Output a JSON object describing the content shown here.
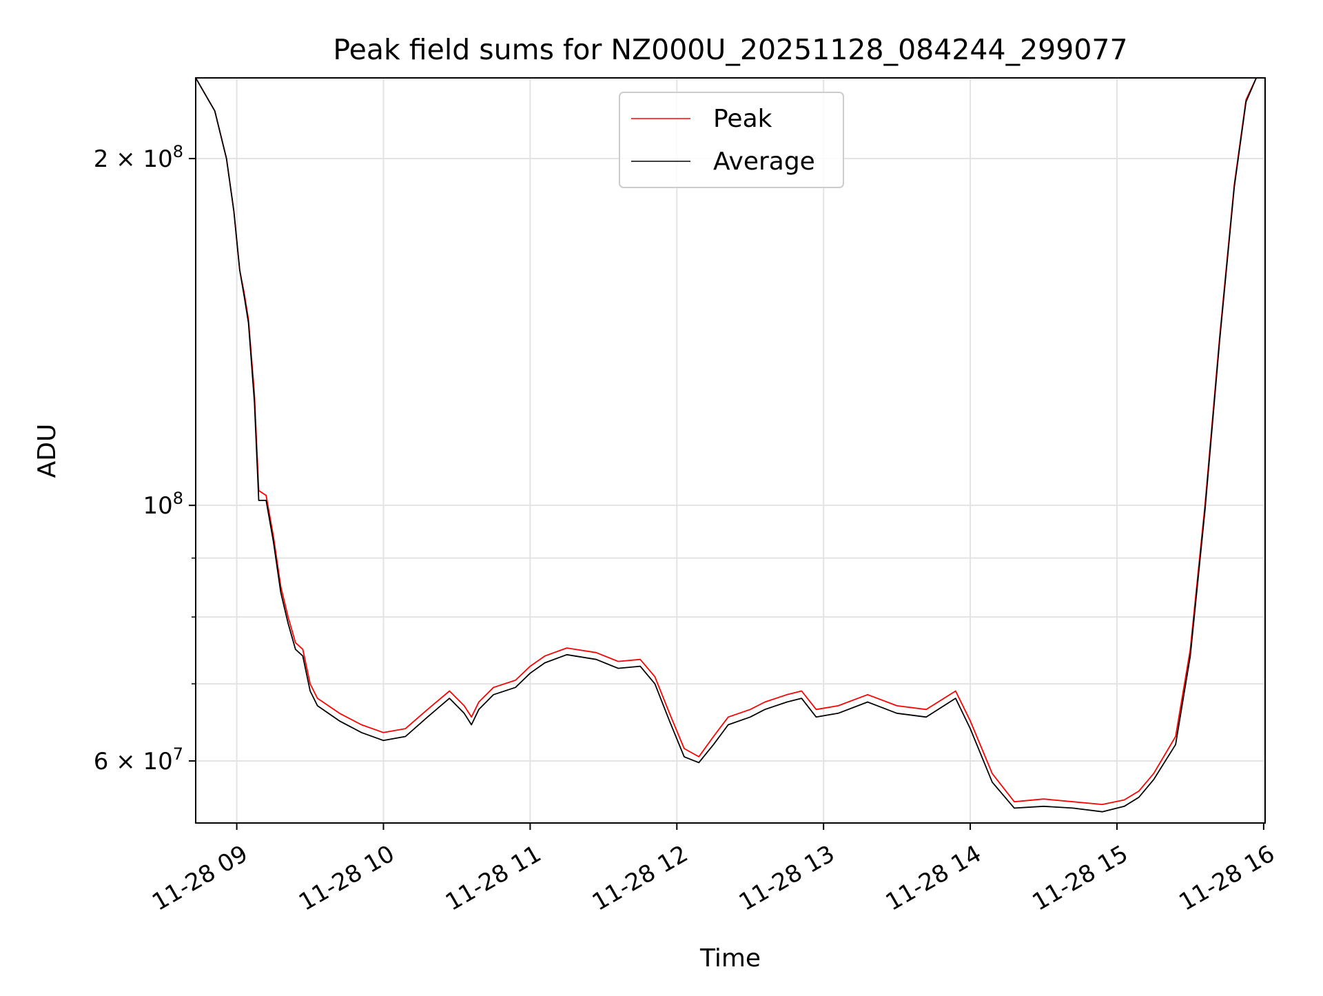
{
  "chart_data": {
    "type": "line",
    "title": "Peak field sums for NZ000U_20251128_084244_299077",
    "xlabel": "Time",
    "ylabel": "ADU",
    "x_unit": "hours (decimal, 2025-11-28)",
    "xlim": [
      8.72,
      16.01
    ],
    "ylim": [
      53000000,
      235000000
    ],
    "y_scale": "log",
    "grid": true,
    "legend_position": "top-center",
    "x_ticks": [
      {
        "value": 9,
        "label": "11-28 09"
      },
      {
        "value": 10,
        "label": "11-28 10"
      },
      {
        "value": 11,
        "label": "11-28 11"
      },
      {
        "value": 12,
        "label": "11-28 12"
      },
      {
        "value": 13,
        "label": "11-28 13"
      },
      {
        "value": 14,
        "label": "11-28 14"
      },
      {
        "value": 15,
        "label": "11-28 15"
      },
      {
        "value": 16,
        "label": "11-28 16"
      }
    ],
    "y_ticks": [
      {
        "value": 200000000,
        "mantissa": "2",
        "exponent": "8"
      },
      {
        "value": 100000000,
        "mantissa": "",
        "exponent": "8"
      },
      {
        "value": 60000000,
        "mantissa": "6",
        "exponent": "7"
      }
    ],
    "y_minor_ticks": [
      70000000,
      80000000,
      90000000
    ],
    "series": [
      {
        "name": "Peak",
        "color": "#ff0000",
        "points": [
          [
            8.72,
            235000000
          ],
          [
            8.85,
            220000000
          ],
          [
            8.93,
            200000000
          ],
          [
            8.98,
            180000000
          ],
          [
            9.02,
            160000000
          ],
          [
            9.05,
            153000000
          ],
          [
            9.08,
            145000000
          ],
          [
            9.12,
            125000000
          ],
          [
            9.15,
            103000000
          ],
          [
            9.2,
            102000000
          ],
          [
            9.25,
            94000000
          ],
          [
            9.3,
            85000000
          ],
          [
            9.35,
            80000000
          ],
          [
            9.4,
            76000000
          ],
          [
            9.45,
            75000000
          ],
          [
            9.5,
            70000000
          ],
          [
            9.55,
            68000000
          ],
          [
            9.7,
            66000000
          ],
          [
            9.85,
            64500000
          ],
          [
            10.0,
            63500000
          ],
          [
            10.15,
            64000000
          ],
          [
            10.3,
            66500000
          ],
          [
            10.45,
            69000000
          ],
          [
            10.55,
            67000000
          ],
          [
            10.6,
            65500000
          ],
          [
            10.65,
            67500000
          ],
          [
            10.75,
            69500000
          ],
          [
            10.9,
            70500000
          ],
          [
            11.0,
            72500000
          ],
          [
            11.1,
            74000000
          ],
          [
            11.25,
            75200000
          ],
          [
            11.45,
            74500000
          ],
          [
            11.6,
            73200000
          ],
          [
            11.75,
            73500000
          ],
          [
            11.85,
            71000000
          ],
          [
            11.95,
            66000000
          ],
          [
            12.05,
            61500000
          ],
          [
            12.15,
            60500000
          ],
          [
            12.25,
            63000000
          ],
          [
            12.35,
            65500000
          ],
          [
            12.5,
            66500000
          ],
          [
            12.6,
            67500000
          ],
          [
            12.75,
            68500000
          ],
          [
            12.85,
            69000000
          ],
          [
            12.95,
            66500000
          ],
          [
            13.1,
            67000000
          ],
          [
            13.3,
            68500000
          ],
          [
            13.5,
            67000000
          ],
          [
            13.7,
            66500000
          ],
          [
            13.9,
            69000000
          ],
          [
            14.0,
            65000000
          ],
          [
            14.15,
            58500000
          ],
          [
            14.3,
            55300000
          ],
          [
            14.5,
            55600000
          ],
          [
            14.7,
            55300000
          ],
          [
            14.9,
            55000000
          ],
          [
            15.05,
            55500000
          ],
          [
            15.15,
            56500000
          ],
          [
            15.25,
            58500000
          ],
          [
            15.4,
            63000000
          ],
          [
            15.5,
            75000000
          ],
          [
            15.6,
            100000000
          ],
          [
            15.7,
            140000000
          ],
          [
            15.8,
            190000000
          ],
          [
            15.88,
            225000000
          ],
          [
            15.95,
            235000000
          ],
          [
            16.01,
            235000000
          ]
        ]
      },
      {
        "name": "Average",
        "color": "#000000",
        "points": [
          [
            8.72,
            235000000
          ],
          [
            8.85,
            220000000
          ],
          [
            8.93,
            200000000
          ],
          [
            8.98,
            180000000
          ],
          [
            9.02,
            160000000
          ],
          [
            9.05,
            152000000
          ],
          [
            9.08,
            144000000
          ],
          [
            9.12,
            123000000
          ],
          [
            9.15,
            101000000
          ],
          [
            9.2,
            101000000
          ],
          [
            9.25,
            93000000
          ],
          [
            9.3,
            84000000
          ],
          [
            9.35,
            79000000
          ],
          [
            9.4,
            75000000
          ],
          [
            9.45,
            74000000
          ],
          [
            9.5,
            69000000
          ],
          [
            9.55,
            67000000
          ],
          [
            9.7,
            65000000
          ],
          [
            9.85,
            63500000
          ],
          [
            10.0,
            62500000
          ],
          [
            10.15,
            63000000
          ],
          [
            10.3,
            65500000
          ],
          [
            10.45,
            68000000
          ],
          [
            10.55,
            66000000
          ],
          [
            10.6,
            64500000
          ],
          [
            10.65,
            66500000
          ],
          [
            10.75,
            68500000
          ],
          [
            10.9,
            69500000
          ],
          [
            11.0,
            71500000
          ],
          [
            11.1,
            73000000
          ],
          [
            11.25,
            74200000
          ],
          [
            11.45,
            73500000
          ],
          [
            11.6,
            72200000
          ],
          [
            11.75,
            72500000
          ],
          [
            11.85,
            70000000
          ],
          [
            11.95,
            65000000
          ],
          [
            12.05,
            60500000
          ],
          [
            12.15,
            59800000
          ],
          [
            12.25,
            62000000
          ],
          [
            12.35,
            64500000
          ],
          [
            12.5,
            65500000
          ],
          [
            12.6,
            66500000
          ],
          [
            12.75,
            67500000
          ],
          [
            12.85,
            68000000
          ],
          [
            12.95,
            65500000
          ],
          [
            13.1,
            66000000
          ],
          [
            13.3,
            67500000
          ],
          [
            13.5,
            66000000
          ],
          [
            13.7,
            65500000
          ],
          [
            13.9,
            68000000
          ],
          [
            14.0,
            64000000
          ],
          [
            14.15,
            57500000
          ],
          [
            14.3,
            54600000
          ],
          [
            14.5,
            54800000
          ],
          [
            14.7,
            54600000
          ],
          [
            14.9,
            54200000
          ],
          [
            15.05,
            54800000
          ],
          [
            15.15,
            55800000
          ],
          [
            15.25,
            57800000
          ],
          [
            15.4,
            62000000
          ],
          [
            15.5,
            74000000
          ],
          [
            15.6,
            99000000
          ],
          [
            15.7,
            139000000
          ],
          [
            15.8,
            189000000
          ],
          [
            15.88,
            224000000
          ],
          [
            15.95,
            235000000
          ],
          [
            16.01,
            235000000
          ]
        ]
      }
    ]
  }
}
